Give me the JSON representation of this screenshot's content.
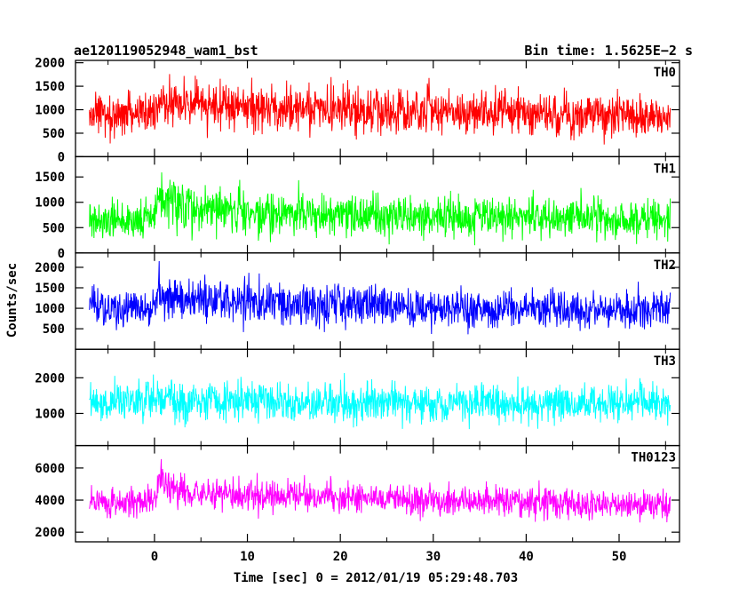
{
  "header": {
    "left": "ae120119052948_wam1_bst",
    "right": "Bin time: 1.5625E−2 s"
  },
  "chart_data": {
    "type": "line",
    "xlabel": "Time [sec] 0 = 2012/01/19 05:29:48.703",
    "ylabel": "Counts/sec",
    "xlim": [
      -8.5,
      56.5
    ],
    "x_ticks": [
      0,
      10,
      20,
      30,
      40,
      50
    ],
    "x_tick_labels": [
      "0",
      "10",
      "20",
      "30",
      "40",
      "50"
    ],
    "series": [
      {
        "name": "TH0",
        "color": "#ff0000",
        "ylim": [
          0,
          2050
        ],
        "y_ticks": [
          0,
          500,
          1000,
          1500,
          2000
        ],
        "x": [
          -7,
          -5,
          -3,
          -1,
          0,
          0.5,
          1,
          2,
          5,
          10,
          15,
          20,
          25,
          30,
          35,
          40,
          45,
          50,
          55.5
        ],
        "values": [
          880,
          880,
          900,
          900,
          920,
          1250,
          1150,
          1100,
          1080,
          1050,
          1030,
          1000,
          980,
          960,
          940,
          930,
          900,
          870,
          860
        ]
      },
      {
        "name": "TH1",
        "color": "#00ff00",
        "ylim": [
          0,
          1900
        ],
        "y_ticks": [
          0,
          500,
          1000,
          1500
        ],
        "y_tick_labels": [
          "0",
          "500",
          "1000",
          "1500"
        ],
        "x": [
          -7,
          -5,
          -3,
          -1,
          0,
          0.5,
          1,
          2,
          5,
          10,
          15,
          20,
          25,
          30,
          35,
          40,
          45,
          50,
          55.5
        ],
        "values": [
          640,
          650,
          660,
          670,
          680,
          1150,
          1050,
          950,
          880,
          820,
          780,
          760,
          740,
          720,
          700,
          690,
          680,
          670,
          660
        ]
      },
      {
        "name": "TH2",
        "color": "#0000ff",
        "ylim": [
          0,
          2350
        ],
        "y_ticks": [
          500,
          1000,
          1500,
          2000
        ],
        "x": [
          -7,
          -5,
          -3,
          -1,
          0,
          0.5,
          1,
          2,
          5,
          10,
          15,
          20,
          25,
          30,
          35,
          40,
          45,
          50,
          55.5
        ],
        "values": [
          1000,
          1000,
          1000,
          1010,
          1020,
          1400,
          1300,
          1250,
          1200,
          1150,
          1100,
          1080,
          1050,
          1020,
          1000,
          990,
          980,
          970,
          960
        ]
      },
      {
        "name": "TH3",
        "color": "#00ffff",
        "ylim": [
          100,
          2800
        ],
        "y_ticks": [
          1000,
          2000
        ],
        "x": [
          -7,
          -5,
          -3,
          -1,
          0,
          0.5,
          1,
          2,
          5,
          10,
          15,
          20,
          25,
          30,
          35,
          40,
          45,
          50,
          55.5
        ],
        "values": [
          1320,
          1320,
          1330,
          1330,
          1340,
          1380,
          1370,
          1360,
          1350,
          1340,
          1330,
          1330,
          1320,
          1320,
          1310,
          1310,
          1300,
          1300,
          1300
        ]
      },
      {
        "name": "TH0123",
        "color": "#ff00ff",
        "ylim": [
          1400,
          7400
        ],
        "y_ticks": [
          2000,
          4000,
          6000
        ],
        "x": [
          -7,
          -5,
          -3,
          -1,
          0,
          0.5,
          1,
          2,
          5,
          10,
          15,
          20,
          25,
          30,
          35,
          40,
          45,
          50,
          55.5
        ],
        "values": [
          3850,
          3860,
          3880,
          3900,
          3950,
          5200,
          4900,
          4700,
          4500,
          4300,
          4200,
          4100,
          4000,
          3950,
          3900,
          3850,
          3800,
          3750,
          3700
        ]
      }
    ]
  }
}
